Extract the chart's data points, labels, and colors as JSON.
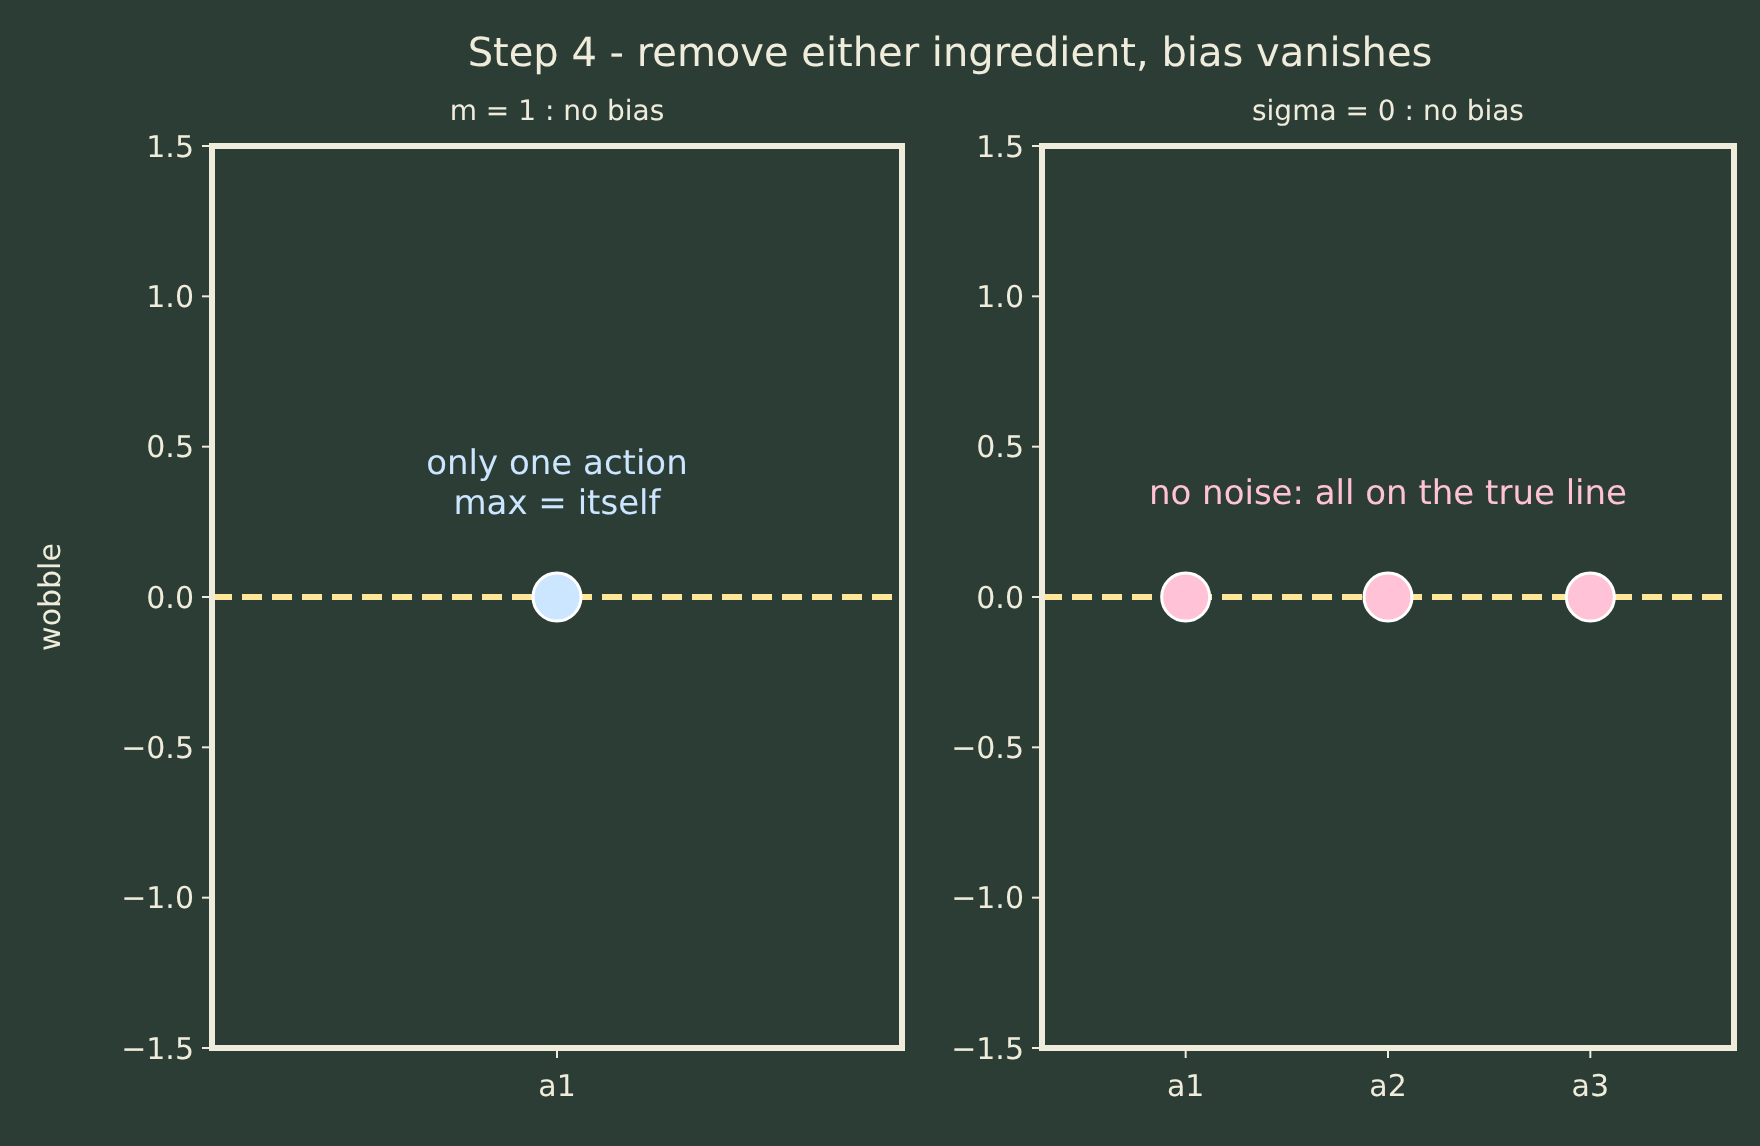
{
  "chart_data": [
    {
      "type": "scatter",
      "title": "Step 4 - remove either ingredient, bias vanishes",
      "subtitle": "m = 1 : no bias",
      "ylabel": "wobble",
      "categories": [
        "a1"
      ],
      "series": [
        {
          "color": "#cce6ff",
          "values": [
            0
          ]
        }
      ],
      "ylim": [
        -1.5,
        1.5
      ],
      "yticks": [
        {
          "value": -1.5,
          "label": "−1.5"
        },
        {
          "value": -1,
          "label": "−1.0"
        },
        {
          "value": -0.5,
          "label": "−0.5"
        },
        {
          "value": 0,
          "label": "0.0"
        },
        {
          "value": 0.5,
          "label": "0.5"
        },
        {
          "value": 1,
          "label": "1.0"
        },
        {
          "value": 1.5,
          "label": "1.5"
        }
      ],
      "ref_lines": [
        {
          "axis": "y",
          "value": 0,
          "color": "#ffe699",
          "line_style": "dashed"
        }
      ],
      "annotations": [
        "only one action\nmax = itself"
      ],
      "marker": "circle",
      "grid": false
    },
    {
      "type": "scatter",
      "subtitle": "sigma = 0 : no bias",
      "categories": [
        "a1",
        "a2",
        "a3"
      ],
      "series": [
        {
          "color": "#ffc2d6",
          "values": [
            0,
            0,
            0
          ]
        }
      ],
      "ylim": [
        -1.5,
        1.5
      ],
      "yticks": [
        {
          "value": -1.5,
          "label": "−1.5"
        },
        {
          "value": -1,
          "label": "−1.0"
        },
        {
          "value": -0.5,
          "label": "−0.5"
        },
        {
          "value": 0,
          "label": "0.0"
        },
        {
          "value": 0.5,
          "label": "0.5"
        },
        {
          "value": 1,
          "label": "1.0"
        },
        {
          "value": 1.5,
          "label": "1.5"
        }
      ],
      "ref_lines": [
        {
          "axis": "y",
          "value": 0,
          "color": "#ffe699",
          "line_style": "dashed"
        }
      ],
      "annotations": [
        "no noise: all on the true line"
      ],
      "marker": "circle",
      "grid": false
    }
  ]
}
